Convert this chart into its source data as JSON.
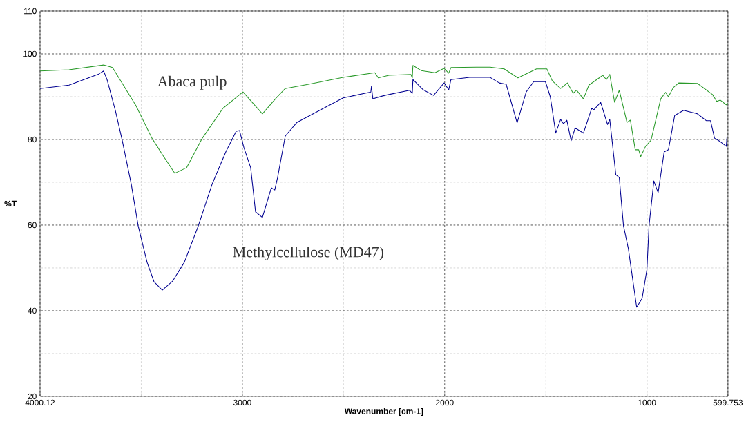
{
  "chart_data": {
    "type": "line",
    "xlabel": "Wavenumber [cm-1]",
    "ylabel": "%T",
    "xlim": [
      4000.12,
      599.753
    ],
    "ylim": [
      20,
      110
    ],
    "xticks": [
      4000.12,
      {
        "value": 3500,
        "label": null
      },
      3000,
      {
        "value": 2500,
        "label": null
      },
      2000,
      {
        "value": 1500,
        "label": null
      },
      1000,
      599.753
    ],
    "yticks": [
      20,
      {
        "value": 30,
        "label": null
      },
      40,
      {
        "value": 50,
        "label": null
      },
      60,
      {
        "value": 70,
        "label": null
      },
      80,
      {
        "value": 90,
        "label": null
      },
      100,
      110
    ],
    "grid": true,
    "series": [
      {
        "name": "Abaca pulp",
        "color": "#2a9a2a",
        "x": [
          4000,
          3857,
          3686,
          3642,
          3526,
          3447,
          3389,
          3334,
          3276,
          3198,
          3096,
          2997,
          2901,
          2833,
          2788,
          2672,
          2502,
          2345,
          2328,
          2276,
          2167,
          2160,
          2157,
          2116,
          2048,
          2003,
          1980,
          1969,
          1843,
          1775,
          1706,
          1638,
          1546,
          1495,
          1468,
          1427,
          1393,
          1365,
          1348,
          1314,
          1287,
          1218,
          1201,
          1184,
          1160,
          1137,
          1099,
          1082,
          1058,
          1041,
          1031,
          1007,
          980,
          932,
          908,
          894,
          870,
          843,
          751,
          676,
          655,
          638,
          608,
          600
        ],
        "values": [
          96.0,
          96.3,
          97.4,
          96.8,
          87.9,
          80.3,
          76.0,
          72.1,
          73.4,
          80.3,
          87.3,
          91.1,
          86.0,
          89.7,
          91.9,
          92.9,
          94.5,
          95.6,
          94.4,
          95.0,
          95.2,
          94.4,
          97.3,
          96.1,
          95.6,
          96.6,
          95.5,
          96.8,
          96.9,
          96.9,
          96.5,
          94.4,
          96.5,
          96.5,
          93.7,
          91.9,
          93.2,
          90.8,
          91.5,
          89.5,
          92.7,
          95.0,
          94.0,
          95.2,
          88.7,
          91.5,
          84.0,
          84.5,
          77.6,
          77.6,
          76.0,
          78.4,
          79.8,
          89.5,
          91.0,
          90.0,
          92.1,
          93.2,
          93.1,
          90.5,
          88.9,
          89.2,
          88.1,
          88.5
        ]
      },
      {
        "name": "Methylcellulose (MD47)",
        "color": "#000090",
        "x": [
          4000,
          3857,
          3710,
          3686,
          3669,
          3628,
          3594,
          3549,
          3515,
          3471,
          3437,
          3396,
          3345,
          3287,
          3218,
          3150,
          3082,
          3031,
          3014,
          2993,
          2959,
          2935,
          2901,
          2857,
          2840,
          2826,
          2788,
          2730,
          2618,
          2502,
          2365,
          2362,
          2355,
          2297,
          2174,
          2160,
          2157,
          2106,
          2055,
          2003,
          1980,
          1969,
          1877,
          1775,
          1730,
          1696,
          1642,
          1597,
          1560,
          1502,
          1478,
          1451,
          1427,
          1413,
          1396,
          1375,
          1355,
          1314,
          1273,
          1263,
          1229,
          1195,
          1184,
          1154,
          1137,
          1116,
          1092,
          1051,
          1024,
          1000,
          990,
          966,
          945,
          915,
          894,
          863,
          819,
          751,
          707,
          686,
          666,
          638,
          608,
          604
        ],
        "values": [
          91.9,
          92.7,
          95.3,
          96.0,
          94.0,
          86.8,
          79.8,
          69.5,
          59.8,
          51.3,
          46.8,
          44.8,
          46.9,
          51.3,
          59.8,
          69.5,
          77.1,
          81.9,
          82.1,
          78.2,
          73.4,
          63.1,
          61.8,
          68.7,
          68.2,
          71.1,
          80.8,
          84.0,
          86.8,
          89.7,
          91.1,
          92.4,
          89.5,
          90.3,
          91.5,
          90.8,
          94.0,
          91.6,
          90.3,
          93.2,
          91.6,
          94.0,
          94.5,
          94.5,
          93.2,
          92.9,
          83.9,
          91.1,
          93.5,
          93.5,
          90.0,
          81.5,
          84.7,
          83.7,
          84.5,
          79.7,
          82.7,
          81.5,
          87.3,
          86.9,
          88.7,
          83.5,
          84.7,
          71.8,
          71.1,
          59.8,
          54.5,
          40.8,
          42.9,
          49.7,
          59.8,
          70.3,
          67.6,
          77.1,
          77.6,
          85.6,
          86.8,
          86.0,
          84.4,
          84.4,
          80.3,
          79.5,
          78.4,
          80.8
        ]
      }
    ]
  }
}
